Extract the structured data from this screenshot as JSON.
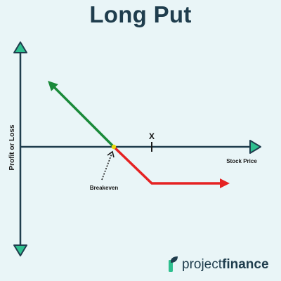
{
  "title": "Long Put",
  "diagram": {
    "y_axis_label": "Profit or Loss",
    "x_axis_label": "Stock Price",
    "strike_label": "X",
    "breakeven_label": "Breakeven",
    "colors": {
      "axis": "#1f3d4d",
      "arrowhead_fill": "#2fbf8f",
      "profit": "#1a8a3a",
      "loss": "#e52222",
      "breakeven_dot": "#e8d70a"
    }
  },
  "logo": {
    "brand_regular": "project",
    "brand_bold": "finance",
    "icon": "projectfinance-leaf-icon"
  }
}
